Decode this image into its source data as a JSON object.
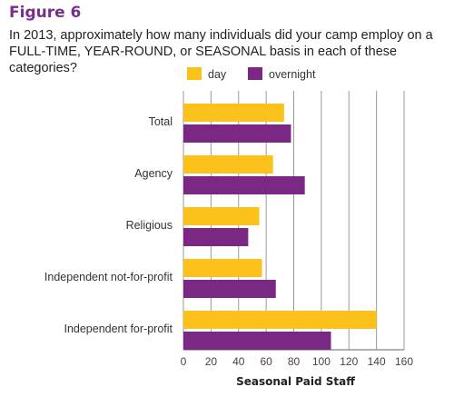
{
  "figure_label": "Figure 6",
  "question": "In 2013, approximately how many individuals did your camp employ on a FULL-TIME, YEAR-ROUND, or SEASONAL basis in each of these categories?",
  "colors": {
    "day": "#fcc21b",
    "overnight": "#7b2784",
    "title": "#7b2d8e"
  },
  "chart_data": {
    "type": "bar",
    "orientation": "horizontal",
    "title": "",
    "categories": [
      "Total",
      "Agency",
      "Religious",
      "Independent not-for-profit",
      "Independent for-profit"
    ],
    "series": [
      {
        "name": "day",
        "values": [
          73,
          65,
          55,
          57,
          140
        ]
      },
      {
        "name": "overnight",
        "values": [
          78,
          88,
          47,
          67,
          107
        ]
      }
    ],
    "xlabel": "Seasonal Paid Staff",
    "ylabel": "",
    "xlim": [
      0,
      160
    ],
    "xticks": [
      0,
      20,
      40,
      60,
      80,
      100,
      120,
      140,
      160
    ],
    "grid": true,
    "legend": "top"
  }
}
